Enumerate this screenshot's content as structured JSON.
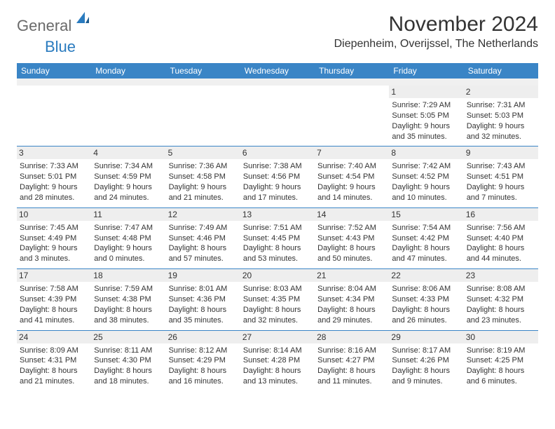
{
  "logo": {
    "word1": "General",
    "word2": "Blue",
    "color1": "#6a6a6a",
    "color2": "#2a7bbf"
  },
  "title": "November 2024",
  "location": "Diepenheim, Overijssel, The Netherlands",
  "styling": {
    "page_bg": "#ffffff",
    "header_bg": "#3a85c6",
    "header_text": "#ffffff",
    "daynum_bg": "#eeeeee",
    "row_border": "#3a85c6",
    "spacer_bg": "#f0f0f0",
    "text_color": "#333333",
    "title_fontsize": 30,
    "location_fontsize": 16,
    "dayheader_fontsize": 12,
    "body_fontsize": 11
  },
  "day_headers": [
    "Sunday",
    "Monday",
    "Tuesday",
    "Wednesday",
    "Thursday",
    "Friday",
    "Saturday"
  ],
  "weeks": [
    [
      {
        "empty": true
      },
      {
        "empty": true
      },
      {
        "empty": true
      },
      {
        "empty": true
      },
      {
        "empty": true
      },
      {
        "num": "1",
        "sunrise": "Sunrise: 7:29 AM",
        "sunset": "Sunset: 5:05 PM",
        "daylight": "Daylight: 9 hours and 35 minutes."
      },
      {
        "num": "2",
        "sunrise": "Sunrise: 7:31 AM",
        "sunset": "Sunset: 5:03 PM",
        "daylight": "Daylight: 9 hours and 32 minutes."
      }
    ],
    [
      {
        "num": "3",
        "sunrise": "Sunrise: 7:33 AM",
        "sunset": "Sunset: 5:01 PM",
        "daylight": "Daylight: 9 hours and 28 minutes."
      },
      {
        "num": "4",
        "sunrise": "Sunrise: 7:34 AM",
        "sunset": "Sunset: 4:59 PM",
        "daylight": "Daylight: 9 hours and 24 minutes."
      },
      {
        "num": "5",
        "sunrise": "Sunrise: 7:36 AM",
        "sunset": "Sunset: 4:58 PM",
        "daylight": "Daylight: 9 hours and 21 minutes."
      },
      {
        "num": "6",
        "sunrise": "Sunrise: 7:38 AM",
        "sunset": "Sunset: 4:56 PM",
        "daylight": "Daylight: 9 hours and 17 minutes."
      },
      {
        "num": "7",
        "sunrise": "Sunrise: 7:40 AM",
        "sunset": "Sunset: 4:54 PM",
        "daylight": "Daylight: 9 hours and 14 minutes."
      },
      {
        "num": "8",
        "sunrise": "Sunrise: 7:42 AM",
        "sunset": "Sunset: 4:52 PM",
        "daylight": "Daylight: 9 hours and 10 minutes."
      },
      {
        "num": "9",
        "sunrise": "Sunrise: 7:43 AM",
        "sunset": "Sunset: 4:51 PM",
        "daylight": "Daylight: 9 hours and 7 minutes."
      }
    ],
    [
      {
        "num": "10",
        "sunrise": "Sunrise: 7:45 AM",
        "sunset": "Sunset: 4:49 PM",
        "daylight": "Daylight: 9 hours and 3 minutes."
      },
      {
        "num": "11",
        "sunrise": "Sunrise: 7:47 AM",
        "sunset": "Sunset: 4:48 PM",
        "daylight": "Daylight: 9 hours and 0 minutes."
      },
      {
        "num": "12",
        "sunrise": "Sunrise: 7:49 AM",
        "sunset": "Sunset: 4:46 PM",
        "daylight": "Daylight: 8 hours and 57 minutes."
      },
      {
        "num": "13",
        "sunrise": "Sunrise: 7:51 AM",
        "sunset": "Sunset: 4:45 PM",
        "daylight": "Daylight: 8 hours and 53 minutes."
      },
      {
        "num": "14",
        "sunrise": "Sunrise: 7:52 AM",
        "sunset": "Sunset: 4:43 PM",
        "daylight": "Daylight: 8 hours and 50 minutes."
      },
      {
        "num": "15",
        "sunrise": "Sunrise: 7:54 AM",
        "sunset": "Sunset: 4:42 PM",
        "daylight": "Daylight: 8 hours and 47 minutes."
      },
      {
        "num": "16",
        "sunrise": "Sunrise: 7:56 AM",
        "sunset": "Sunset: 4:40 PM",
        "daylight": "Daylight: 8 hours and 44 minutes."
      }
    ],
    [
      {
        "num": "17",
        "sunrise": "Sunrise: 7:58 AM",
        "sunset": "Sunset: 4:39 PM",
        "daylight": "Daylight: 8 hours and 41 minutes."
      },
      {
        "num": "18",
        "sunrise": "Sunrise: 7:59 AM",
        "sunset": "Sunset: 4:38 PM",
        "daylight": "Daylight: 8 hours and 38 minutes."
      },
      {
        "num": "19",
        "sunrise": "Sunrise: 8:01 AM",
        "sunset": "Sunset: 4:36 PM",
        "daylight": "Daylight: 8 hours and 35 minutes."
      },
      {
        "num": "20",
        "sunrise": "Sunrise: 8:03 AM",
        "sunset": "Sunset: 4:35 PM",
        "daylight": "Daylight: 8 hours and 32 minutes."
      },
      {
        "num": "21",
        "sunrise": "Sunrise: 8:04 AM",
        "sunset": "Sunset: 4:34 PM",
        "daylight": "Daylight: 8 hours and 29 minutes."
      },
      {
        "num": "22",
        "sunrise": "Sunrise: 8:06 AM",
        "sunset": "Sunset: 4:33 PM",
        "daylight": "Daylight: 8 hours and 26 minutes."
      },
      {
        "num": "23",
        "sunrise": "Sunrise: 8:08 AM",
        "sunset": "Sunset: 4:32 PM",
        "daylight": "Daylight: 8 hours and 23 minutes."
      }
    ],
    [
      {
        "num": "24",
        "sunrise": "Sunrise: 8:09 AM",
        "sunset": "Sunset: 4:31 PM",
        "daylight": "Daylight: 8 hours and 21 minutes."
      },
      {
        "num": "25",
        "sunrise": "Sunrise: 8:11 AM",
        "sunset": "Sunset: 4:30 PM",
        "daylight": "Daylight: 8 hours and 18 minutes."
      },
      {
        "num": "26",
        "sunrise": "Sunrise: 8:12 AM",
        "sunset": "Sunset: 4:29 PM",
        "daylight": "Daylight: 8 hours and 16 minutes."
      },
      {
        "num": "27",
        "sunrise": "Sunrise: 8:14 AM",
        "sunset": "Sunset: 4:28 PM",
        "daylight": "Daylight: 8 hours and 13 minutes."
      },
      {
        "num": "28",
        "sunrise": "Sunrise: 8:16 AM",
        "sunset": "Sunset: 4:27 PM",
        "daylight": "Daylight: 8 hours and 11 minutes."
      },
      {
        "num": "29",
        "sunrise": "Sunrise: 8:17 AM",
        "sunset": "Sunset: 4:26 PM",
        "daylight": "Daylight: 8 hours and 9 minutes."
      },
      {
        "num": "30",
        "sunrise": "Sunrise: 8:19 AM",
        "sunset": "Sunset: 4:25 PM",
        "daylight": "Daylight: 8 hours and 6 minutes."
      }
    ]
  ]
}
